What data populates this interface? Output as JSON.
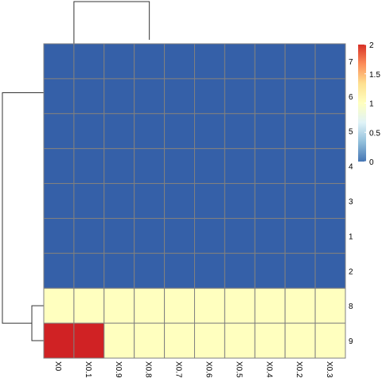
{
  "chart_data": {
    "type": "heatmap",
    "columns": [
      "X0",
      "X0.1",
      "X0.9",
      "X0.8",
      "X0.7",
      "X0.6",
      "X0.5",
      "X0.4",
      "X0.2",
      "X0.3"
    ],
    "rows": [
      "7",
      "6",
      "5",
      "4",
      "3",
      "1",
      "2",
      "8",
      "9"
    ],
    "values": [
      [
        0,
        0,
        0,
        0,
        0,
        0,
        0,
        0,
        0,
        0
      ],
      [
        0,
        0,
        0,
        0,
        0,
        0,
        0,
        0,
        0,
        0
      ],
      [
        0,
        0,
        0,
        0,
        0,
        0,
        0,
        0,
        0,
        0
      ],
      [
        0,
        0,
        0,
        0,
        0,
        0,
        0,
        0,
        0,
        0
      ],
      [
        0,
        0,
        0,
        0,
        0,
        0,
        0,
        0,
        0,
        0
      ],
      [
        0,
        0,
        0,
        0,
        0,
        0,
        0,
        0,
        0,
        0
      ],
      [
        0,
        0,
        0,
        0,
        0,
        0,
        0,
        0,
        0,
        0
      ],
      [
        1,
        1,
        1,
        1,
        1,
        1,
        1,
        1,
        1,
        1
      ],
      [
        2,
        2,
        1,
        1,
        1,
        1,
        1,
        1,
        1,
        1
      ]
    ],
    "color_scale": {
      "min": 0,
      "max": 2,
      "ticks": [
        "0",
        "0.5",
        "1",
        "1.5",
        "2"
      ],
      "tick_values": [
        0,
        0.5,
        1,
        1.5,
        2
      ],
      "colors": [
        "#4575B4",
        "#91BFDB",
        "#E0F3F8",
        "#FFFFBF",
        "#FEE090",
        "#FC8D59",
        "#D73027"
      ]
    },
    "cell_colors": {
      "low": "#3560A8",
      "mid": "#FFFFBF",
      "high": "#D02224"
    },
    "grid_color": "#808080",
    "dendrogram_color": "#333333",
    "legend_position": "right"
  }
}
